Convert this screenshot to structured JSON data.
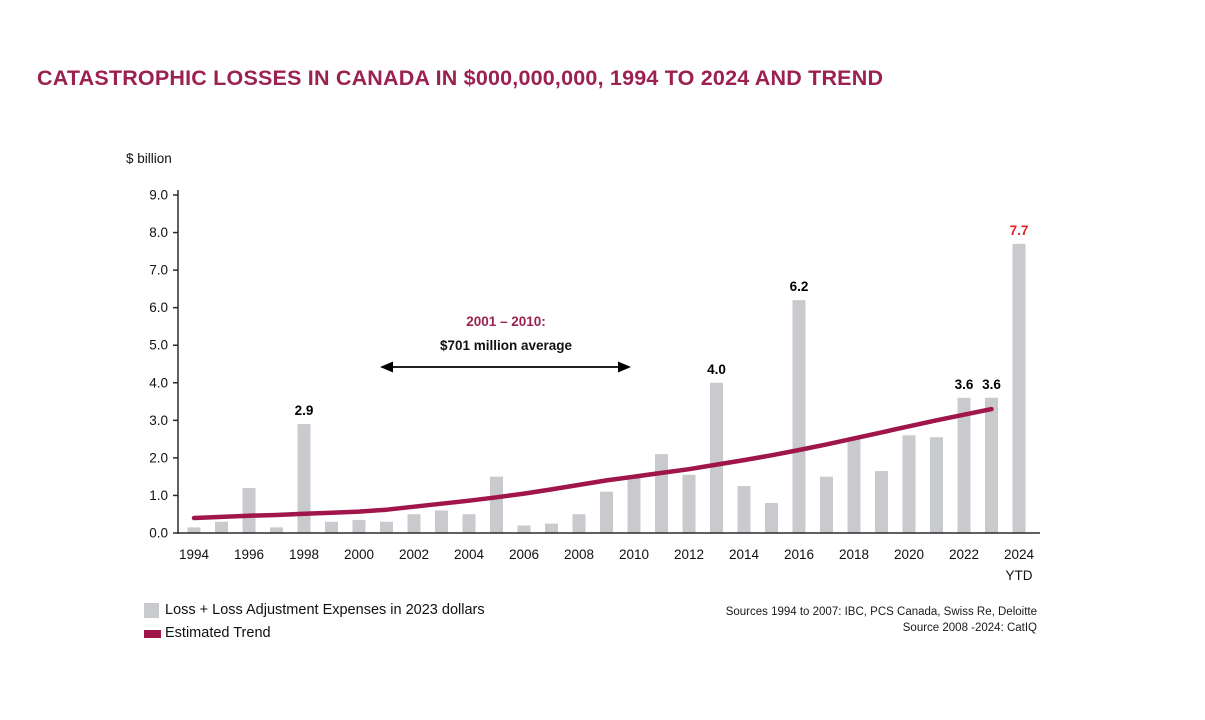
{
  "sources": {
    "line1": "Sources 1994 to 2007: IBC, PCS Canada, Swiss Re, Deloitte",
    "line2": "Source 2008 -2024: CatIQ"
  },
  "colors": {
    "maroon_title": "#9B2150",
    "maroon_trend": "#A0154A",
    "bar_gray": "#C9CACE",
    "label_red": "#E32226",
    "text_black": "#111111",
    "axis_black": "#2b2b2b"
  },
  "chart_data": {
    "type": "bar",
    "title": "CATASTROPHIC LOSSES IN CANADA IN $000,000,000, 1994 TO 2024 AND TREND",
    "ylabel": "$ billion",
    "xlabel": "",
    "ylim": [
      0,
      9
    ],
    "grid": false,
    "legend_position": "bottom-left",
    "y_ticks": [
      "0.0",
      "1.0",
      "2.0",
      "3.0",
      "4.0",
      "5.0",
      "6.0",
      "7.0",
      "8.0",
      "9.0"
    ],
    "x_tick_years": [
      1994,
      1996,
      1998,
      2000,
      2002,
      2004,
      2006,
      2008,
      2010,
      2012,
      2014,
      2016,
      2018,
      2020,
      2022,
      2024
    ],
    "x_last_tick_sub": "YTD",
    "years": [
      1994,
      1995,
      1996,
      1997,
      1998,
      1999,
      2000,
      2001,
      2002,
      2003,
      2004,
      2005,
      2006,
      2007,
      2008,
      2009,
      2010,
      2011,
      2012,
      2013,
      2014,
      2015,
      2016,
      2017,
      2018,
      2019,
      2020,
      2021,
      2022,
      2023,
      2024
    ],
    "series": [
      {
        "name": "Loss + Loss Adjustment Expenses in 2023 dollars",
        "type": "bar",
        "values": [
          0.15,
          0.3,
          1.2,
          0.15,
          2.9,
          0.3,
          0.35,
          0.3,
          0.5,
          0.6,
          0.5,
          1.5,
          0.2,
          0.25,
          0.5,
          1.1,
          1.5,
          2.1,
          1.55,
          4.0,
          1.25,
          0.8,
          6.2,
          1.5,
          2.5,
          1.65,
          2.6,
          2.55,
          3.6,
          3.6,
          7.7
        ]
      },
      {
        "name": "Estimated Trend",
        "type": "line",
        "years": [
          1994,
          1995,
          1996,
          1997,
          1998,
          1999,
          2000,
          2001,
          2002,
          2003,
          2004,
          2005,
          2006,
          2007,
          2008,
          2009,
          2010,
          2011,
          2012,
          2013,
          2014,
          2015,
          2016,
          2017,
          2018,
          2019,
          2020,
          2021,
          2022,
          2023
        ],
        "values": [
          0.4,
          0.43,
          0.46,
          0.48,
          0.51,
          0.54,
          0.57,
          0.62,
          0.7,
          0.78,
          0.86,
          0.95,
          1.05,
          1.16,
          1.28,
          1.4,
          1.5,
          1.6,
          1.7,
          1.82,
          1.94,
          2.07,
          2.21,
          2.36,
          2.52,
          2.68,
          2.84,
          3.0,
          3.15,
          3.3
        ]
      }
    ],
    "bar_labels": [
      {
        "year": 1998,
        "text": "2.9",
        "color": "black"
      },
      {
        "year": 2013,
        "text": "4.0",
        "color": "black"
      },
      {
        "year": 2016,
        "text": "6.2",
        "color": "black"
      },
      {
        "year": 2022,
        "text": "3.6",
        "color": "black"
      },
      {
        "year": 2023,
        "text": "3.6",
        "color": "black"
      },
      {
        "year": 2024,
        "text": "7.7",
        "color": "red"
      }
    ],
    "annotation": {
      "heading": "2001 – 2010:",
      "subheading": "$701 million average",
      "span_years": [
        2001,
        2010
      ]
    },
    "legend": [
      {
        "label": "Loss + Loss Adjustment Expenses in 2023 dollars",
        "swatch": "bar"
      },
      {
        "label": "Estimated Trend",
        "swatch": "line"
      }
    ]
  }
}
